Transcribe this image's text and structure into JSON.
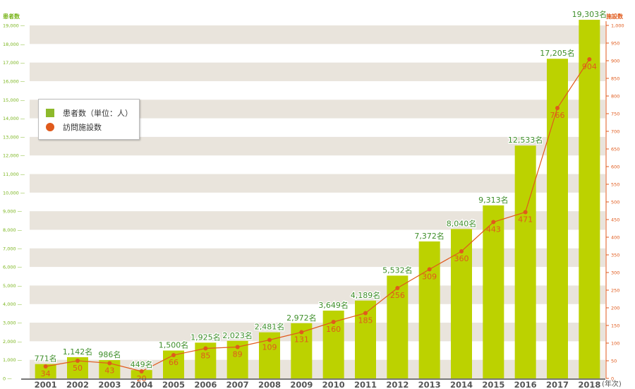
{
  "chart_data": {
    "type": "bar+line",
    "x": [
      "2001",
      "2002",
      "2003",
      "2004",
      "2005",
      "2006",
      "2007",
      "2008",
      "2009",
      "2010",
      "2011",
      "2012",
      "2013",
      "2014",
      "2015",
      "2016",
      "2017",
      "2018"
    ],
    "x_unit": "(年次)",
    "left_axis": {
      "title": "患者数",
      "ylim": [
        0,
        19000
      ],
      "ticks": [
        "0",
        "1,000",
        "2,000",
        "3,000",
        "4,000",
        "5,000",
        "6,000",
        "7,000",
        "8,000",
        "9,000",
        "10,000",
        "11,000",
        "12,000",
        "13,000",
        "14,000",
        "15,000",
        "16,000",
        "17,000",
        "18,000",
        "19,000"
      ]
    },
    "right_axis": {
      "title": "施設数",
      "ylim": [
        0,
        1000
      ],
      "ticks": [
        "0",
        "50",
        "100",
        "150",
        "200",
        "250",
        "300",
        "350",
        "400",
        "450",
        "500",
        "550",
        "600",
        "650",
        "700",
        "750",
        "800",
        "850",
        "900",
        "950",
        "1,000"
      ]
    },
    "series": [
      {
        "name": "患者数（単位：人）",
        "type": "bar",
        "axis": "left",
        "values": [
          771,
          1142,
          986,
          449,
          1500,
          1925,
          2023,
          2481,
          2972,
          3649,
          4189,
          5532,
          7372,
          8040,
          9313,
          12533,
          17205,
          19303
        ],
        "labels": [
          "771名",
          "1,142名",
          "986名",
          "449名",
          "1,500名",
          "1,925名",
          "2,023名",
          "2,481名",
          "2,972名",
          "3,649名",
          "4,189名",
          "5,532名",
          "7,372名",
          "8,040名",
          "9,313名",
          "12,533名",
          "17,205名",
          "19,303名"
        ]
      },
      {
        "name": "訪問施設数",
        "type": "line",
        "axis": "right",
        "values": [
          34,
          50,
          43,
          20,
          66,
          85,
          89,
          109,
          131,
          160,
          185,
          256,
          309,
          360,
          443,
          471,
          766,
          904
        ]
      }
    ],
    "legend": "upper-left",
    "colors": {
      "bar": "#bcd200",
      "line": "#e05a1c",
      "left_axis": "#7ab51d",
      "right_axis": "#e05a1c",
      "band": "#e9e4dc",
      "label_bar": "#3f8f2b"
    }
  }
}
